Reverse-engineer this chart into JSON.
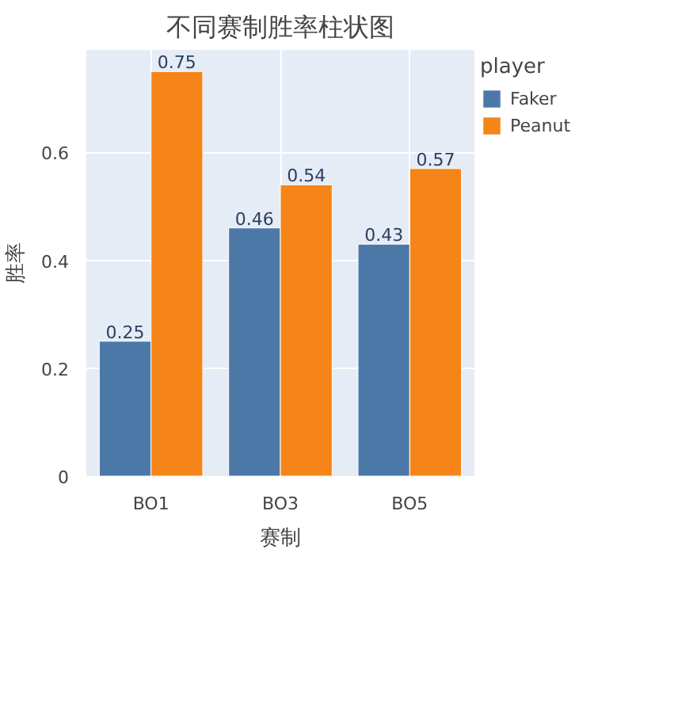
{
  "chart_data": {
    "type": "bar",
    "title": "不同赛制胜率柱状图",
    "xlabel": "赛制",
    "ylabel": "胜率",
    "legend_title": "player",
    "categories": [
      "BO1",
      "BO3",
      "BO5"
    ],
    "series": [
      {
        "name": "Faker",
        "color": "#4c78a8",
        "values": [
          0.25,
          0.46,
          0.43
        ]
      },
      {
        "name": "Peanut",
        "color": "#f58518",
        "values": [
          0.75,
          0.54,
          0.57
        ]
      }
    ],
    "ylim": [
      0,
      0.79
    ],
    "yticks": [
      0,
      0.2,
      0.4,
      0.6
    ],
    "grid": true,
    "legend": "right",
    "data_labels": true
  }
}
